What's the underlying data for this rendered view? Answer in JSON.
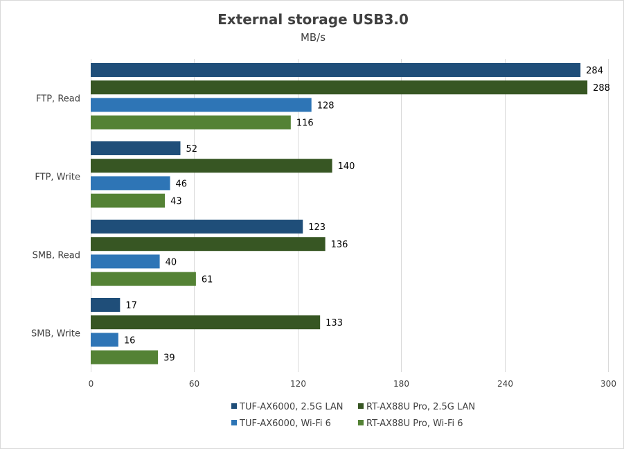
{
  "chart_data": {
    "type": "bar",
    "orientation": "horizontal",
    "title": "External storage USB3.0",
    "subtitle": "MB/s",
    "xlabel": "",
    "ylabel": "",
    "xlim": [
      0,
      300
    ],
    "ticks": [
      0,
      60,
      120,
      180,
      240,
      300
    ],
    "grid": true,
    "legend_position": "bottom",
    "categories": [
      "FTP, Read",
      "FTP, Write",
      "SMB, Read",
      "SMB, Write"
    ],
    "series": [
      {
        "name": "TUF-AX6000, 2.5G LAN",
        "color": "#1f4e79",
        "values": [
          284,
          52,
          123,
          17
        ]
      },
      {
        "name": "RT-AX88U Pro, 2.5G LAN",
        "color": "#375623",
        "values": [
          288,
          140,
          136,
          133
        ]
      },
      {
        "name": "TUF-AX6000, Wi-Fi 6",
        "color": "#2e75b6",
        "values": [
          128,
          46,
          40,
          16
        ]
      },
      {
        "name": "RT-AX88U Pro, Wi-Fi 6",
        "color": "#548235",
        "values": [
          116,
          43,
          61,
          39
        ]
      }
    ]
  }
}
